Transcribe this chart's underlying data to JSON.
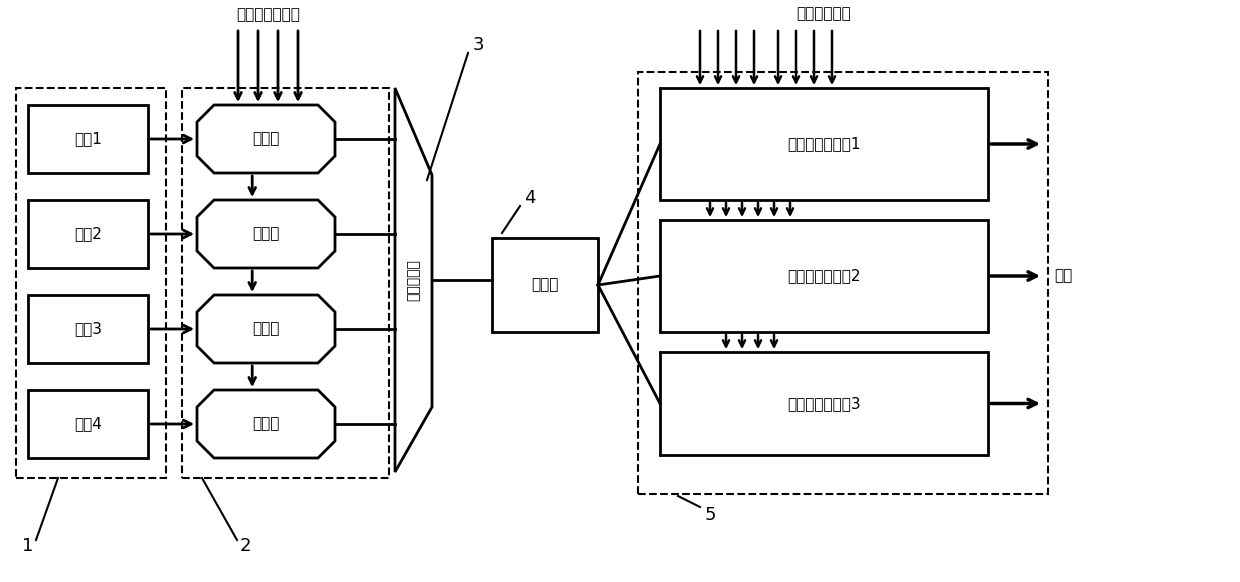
{
  "fig_width": 12.4,
  "fig_height": 5.82,
  "bg_color": "#ffffff",
  "lc": "#000000",
  "light_sources": [
    "光源1",
    "光源2",
    "光源3",
    "光源4"
  ],
  "modulators": [
    "调制器",
    "调制器",
    "调制器",
    "调制器"
  ],
  "mrr_arrays": [
    "微环谐振器阵列1",
    "微环谐振器阵列2",
    "微环谐振器阵列3"
  ],
  "label1": "1",
  "label2": "2",
  "label3": "3",
  "label4": "4",
  "label5": "5",
  "top_label_left": "待卷积信号输入",
  "top_label_right": "卷积窗口输入",
  "output_label": "输出",
  "wdm_label": "波分复用器",
  "splitter_label": "分光器",
  "fs": 11
}
